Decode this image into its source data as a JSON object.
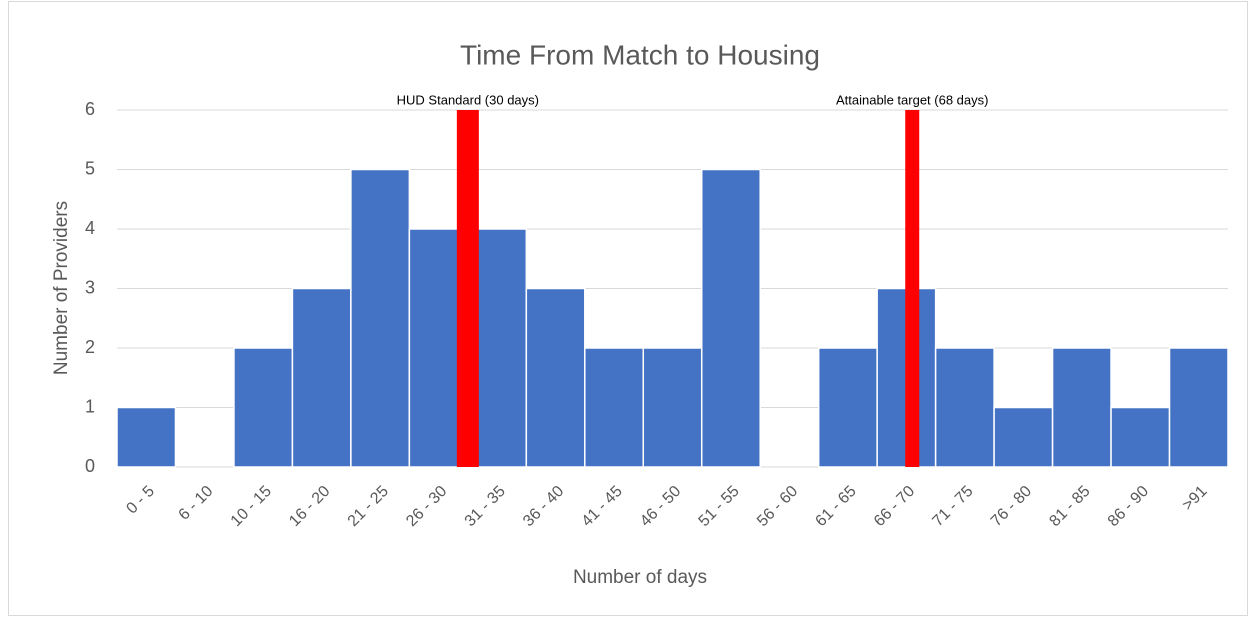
{
  "chart_data": {
    "type": "bar",
    "title": "Time From Match to Housing",
    "x_label": "Number of days",
    "y_label": "Number of Providers",
    "categories": [
      "0 - 5",
      "6 - 10",
      "10 - 15",
      "16 - 20",
      "21 - 25",
      "26 - 30",
      "31 - 35",
      "36 - 40",
      "41 - 45",
      "46 - 50",
      "51 - 55",
      "56 - 60",
      "61 - 65",
      "66 - 70",
      "71 - 75",
      "76 - 80",
      "81 - 85",
      "86 - 90",
      ">91"
    ],
    "values": [
      1,
      0,
      2,
      3,
      5,
      4,
      4,
      3,
      2,
      2,
      5,
      0,
      2,
      3,
      2,
      1,
      2,
      1,
      2
    ],
    "color": "#4472c4",
    "ylim": [
      0,
      6
    ],
    "yticks": [
      0,
      1,
      2,
      3,
      4,
      5,
      6
    ],
    "grid": true,
    "markers": [
      {
        "label": "HUD Standard (30 days)",
        "days": 30,
        "value": 6,
        "color": "#ff0000"
      },
      {
        "label": "Attainable target (68 days)",
        "days": 68,
        "value": 6,
        "color": "#ff0000"
      }
    ]
  }
}
